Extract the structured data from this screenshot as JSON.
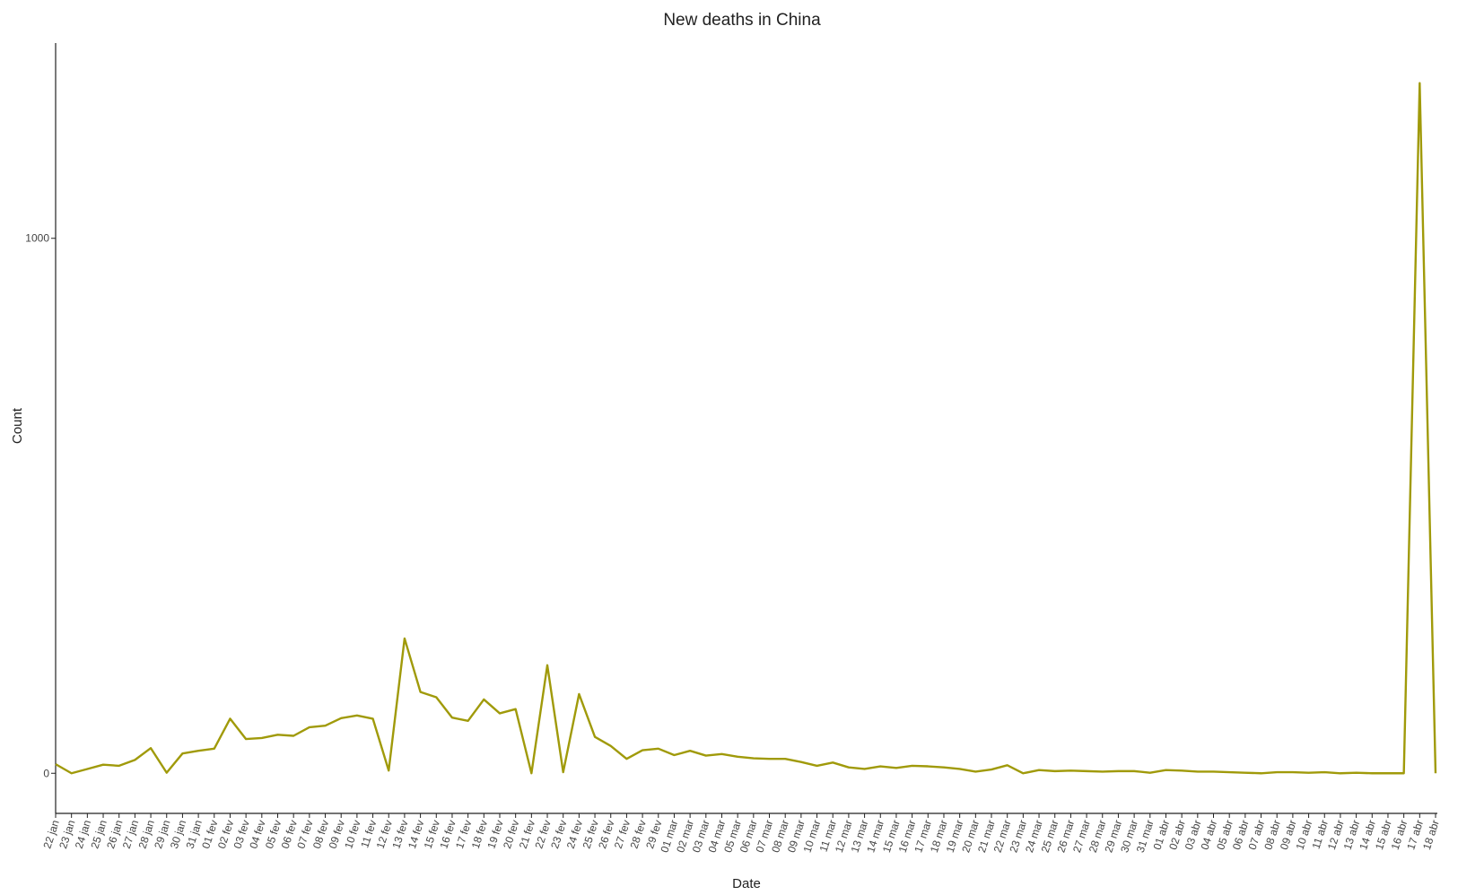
{
  "chart_data": {
    "type": "line",
    "title": "New deaths in China",
    "xlabel": "Date",
    "ylabel": "Count",
    "ylim": [
      -75,
      1365
    ],
    "yticks": [
      0,
      1000
    ],
    "grid": false,
    "line_color": "#A09A0A",
    "series": [
      {
        "x": [
          "22 jan",
          "23 jan",
          "24 jan",
          "25 jan",
          "26 jan",
          "27 jan",
          "28 jan",
          "29 jan",
          "30 jan",
          "31 jan",
          "01 fev",
          "02 fev",
          "03 fev",
          "04 fev",
          "05 fev",
          "06 fev",
          "07 fev",
          "08 fev",
          "09 fev",
          "10 fev",
          "11 fev",
          "12 fev",
          "13 fev",
          "14 fev",
          "15 fev",
          "16 fev",
          "17 fev",
          "18 fev",
          "19 fev",
          "20 fev",
          "21 fev",
          "22 fev",
          "23 fev",
          "24 fev",
          "25 fev",
          "26 fev",
          "27 fev",
          "28 fev",
          "29 fev",
          "01 mar",
          "02 mar",
          "03 mar",
          "04 mar",
          "05 mar",
          "06 mar",
          "07 mar",
          "08 mar",
          "09 mar",
          "10 mar",
          "11 mar",
          "12 mar",
          "13 mar",
          "14 mar",
          "15 mar",
          "16 mar",
          "17 mar",
          "18 mar",
          "19 mar",
          "20 mar",
          "21 mar",
          "22 mar",
          "23 mar",
          "24 mar",
          "25 mar",
          "26 mar",
          "27 mar",
          "28 mar",
          "29 mar",
          "30 mar",
          "31 mar",
          "01 abr",
          "02 abr",
          "03 abr",
          "04 abr",
          "05 abr",
          "06 abr",
          "07 abr",
          "08 abr",
          "09 abr",
          "10 abr",
          "11 abr",
          "12 abr",
          "13 abr",
          "14 abr",
          "15 abr",
          "16 abr",
          "17 abr",
          "18 abr"
        ],
        "values": [
          17,
          0,
          8,
          16,
          14,
          25,
          47,
          1,
          37,
          42,
          46,
          102,
          64,
          66,
          72,
          70,
          86,
          89,
          103,
          108,
          102,
          5,
          252,
          152,
          142,
          104,
          98,
          138,
          112,
          120,
          0,
          202,
          2,
          148,
          68,
          51,
          27,
          43,
          46,
          34,
          42,
          33,
          36,
          31,
          28,
          27,
          27,
          21,
          14,
          20,
          11,
          8,
          13,
          10,
          14,
          13,
          11,
          8,
          3,
          7,
          15,
          0,
          6,
          4,
          5,
          4,
          3,
          4,
          4,
          1,
          6,
          5,
          3,
          3,
          2,
          1,
          0,
          2,
          2,
          1,
          2,
          0,
          1,
          0,
          0,
          0,
          1290,
          0
        ]
      }
    ]
  }
}
